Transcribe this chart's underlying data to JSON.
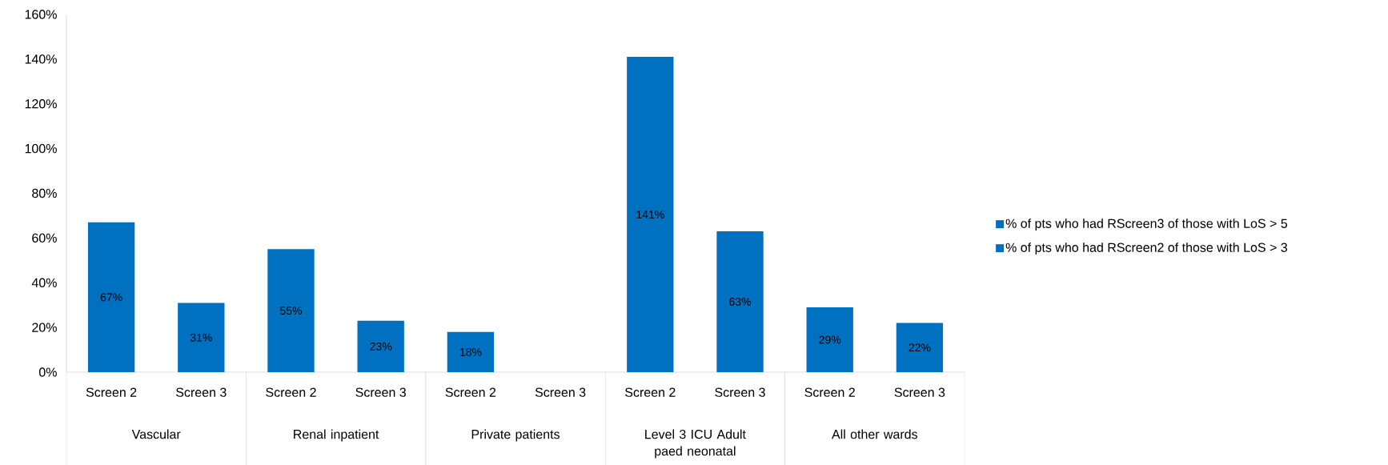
{
  "chart_data": {
    "type": "bar",
    "categories": [
      "Screen 2",
      "Screen 3",
      "Screen 2",
      "Screen 3",
      "Screen 2",
      "Screen 3",
      "Screen 2",
      "Screen 3",
      "Screen 2",
      "Screen 3"
    ],
    "series": [
      {
        "name": "% of pts who had RScreen3 of those with LoS > 5",
        "color": "#0070c0",
        "values": [
          null,
          31,
          null,
          23,
          null,
          null,
          null,
          63,
          null,
          22
        ],
        "value_labels": [
          null,
          "31%",
          null,
          "23%",
          null,
          null,
          null,
          "63%",
          null,
          "22%"
        ]
      },
      {
        "name": "% of pts who had RScreen2 of those with LoS > 3",
        "color": "#0070c0",
        "values": [
          67,
          null,
          55,
          null,
          18,
          null,
          141,
          null,
          29,
          null
        ],
        "value_labels": [
          "67%",
          null,
          "55%",
          null,
          "18%",
          null,
          "141%",
          null,
          "29%",
          null
        ]
      }
    ],
    "ylim": [
      0,
      160
    ],
    "yticks": [
      {
        "value": 0,
        "label": "0%"
      },
      {
        "value": 20,
        "label": "20%"
      },
      {
        "value": 40,
        "label": "40%"
      },
      {
        "value": 60,
        "label": "60%"
      },
      {
        "value": 80,
        "label": "80%"
      },
      {
        "value": 100,
        "label": "100%"
      },
      {
        "value": 120,
        "label": "120%"
      },
      {
        "value": 140,
        "label": "140%"
      },
      {
        "value": 160,
        "label": "160%"
      }
    ],
    "annotations": [
      "Vascular",
      "Renal inpatient",
      "Private patients",
      "Level 3 ICU Adult paed neonatal",
      "All other wards"
    ],
    "grid": false,
    "legend": "right"
  }
}
